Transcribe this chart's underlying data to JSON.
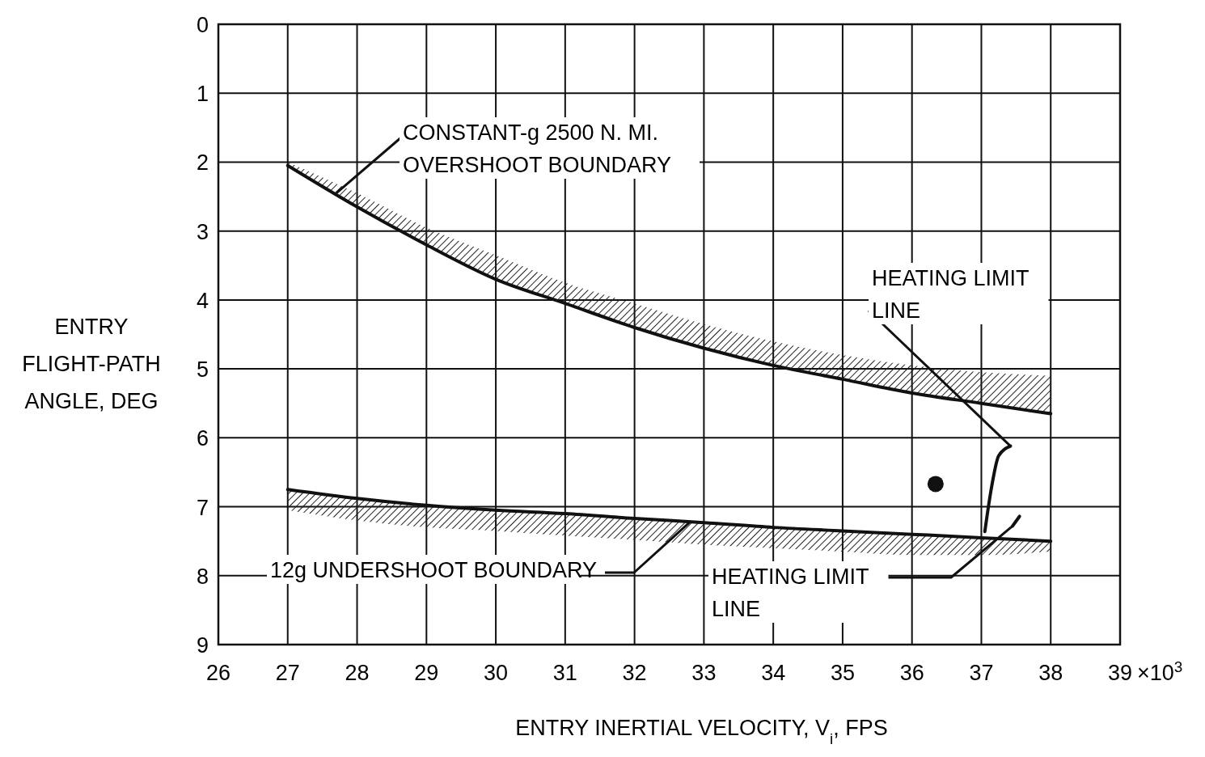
{
  "chart_data": {
    "type": "line",
    "xlabel": "ENTRY INERTIAL VELOCITY, V$_{i}$, FPS",
    "ylabel": "ENTRY FLIGHT-PATH ANGLE, DEG",
    "xlim": [
      26,
      39
    ],
    "xticks": [
      26,
      27,
      28,
      29,
      30,
      31,
      32,
      33,
      34,
      35,
      36,
      37,
      38,
      39
    ],
    "ylim": [
      9,
      0
    ],
    "yticks": [
      0,
      1,
      2,
      3,
      4,
      5,
      6,
      7,
      8,
      9
    ],
    "grid": true,
    "series": [
      {
        "color": "#111111",
        "marker": "none",
        "x": [
          27,
          28,
          29,
          30,
          31,
          32,
          33,
          34,
          35,
          36,
          37,
          38
        ],
        "values": [
          2.05,
          2.65,
          3.2,
          3.7,
          4.05,
          4.4,
          4.7,
          4.95,
          5.15,
          5.35,
          5.5,
          5.65
        ],
        "lower": [
          2.0,
          2.45,
          2.95,
          3.35,
          3.75,
          4.05,
          4.35,
          4.6,
          4.8,
          4.95,
          5.05,
          5.1
        ],
        "upper": [
          2.05,
          2.65,
          3.2,
          3.7,
          4.05,
          4.4,
          4.7,
          4.95,
          5.15,
          5.35,
          5.5,
          5.65
        ]
      },
      {
        "color": "#111111",
        "marker": "none",
        "x": [
          27,
          28,
          29,
          30,
          31,
          32,
          33,
          34,
          35,
          36,
          37,
          38
        ],
        "values": [
          6.75,
          6.88,
          6.98,
          7.05,
          7.1,
          7.17,
          7.23,
          7.3,
          7.35,
          7.4,
          7.45,
          7.5
        ],
        "lower": [
          6.75,
          6.88,
          6.98,
          7.05,
          7.1,
          7.17,
          7.23,
          7.3,
          7.35,
          7.4,
          7.45,
          7.5
        ],
        "upper": [
          7.05,
          7.2,
          7.3,
          7.35,
          7.42,
          7.48,
          7.55,
          7.6,
          7.65,
          7.7,
          7.7,
          7.65
        ]
      },
      {
        "color": "#111111",
        "marker": "none",
        "x": [
          37.05,
          37.15,
          37.25,
          37.42
        ],
        "values": [
          7.36,
          6.7,
          6.26,
          6.12
        ]
      },
      {
        "color": "#111111",
        "marker": "none",
        "x": [
          37.45,
          37.55
        ],
        "values": [
          7.28,
          7.14
        ]
      },
      {
        "type": "scatter",
        "color": "#111111",
        "marker": "circle",
        "x": [
          36.34
        ],
        "values": [
          6.67
        ]
      }
    ],
    "annotations": [
      {
        "text": "CONSTANT-g 2500 N. MI.\nOVERSHOOT BOUNDARY",
        "x": 27.7,
        "y": 2.45
      },
      {
        "text": "HEATING LIMIT\nLINE",
        "x": 37.42,
        "y": 6.12
      },
      {
        "text": "12g UNDERSHOOT BOUNDARY",
        "x": 32.8,
        "y": 7.22
      },
      {
        "text": "HEATING LIMIT\nLINE",
        "x": 37.45,
        "y": 7.28
      },
      "×10$^{3}$"
    ]
  }
}
